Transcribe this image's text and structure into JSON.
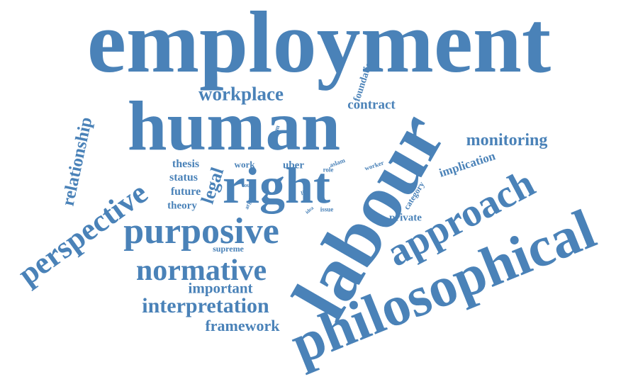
{
  "colors": {
    "word": "#4a82b8",
    "background": "#ffffff"
  },
  "words": [
    {
      "id": "employment",
      "text": "employment"
    },
    {
      "id": "human",
      "text": "human"
    },
    {
      "id": "labour",
      "text": "labour"
    },
    {
      "id": "philosophical",
      "text": "philosophical"
    },
    {
      "id": "right",
      "text": "right"
    },
    {
      "id": "approach",
      "text": "approach"
    },
    {
      "id": "purposive",
      "text": "purposive"
    },
    {
      "id": "perspective",
      "text": "perspective"
    },
    {
      "id": "normative",
      "text": "normative"
    },
    {
      "id": "interpretation",
      "text": "interpretation"
    },
    {
      "id": "workplace",
      "text": "workplace"
    },
    {
      "id": "relationship",
      "text": "relationship"
    },
    {
      "id": "monitoring",
      "text": "monitoring"
    },
    {
      "id": "framework",
      "text": "framework"
    },
    {
      "id": "important",
      "text": "important"
    },
    {
      "id": "legal",
      "text": "legal"
    },
    {
      "id": "contract",
      "text": "contract"
    },
    {
      "id": "foundation",
      "text": "foundation"
    },
    {
      "id": "implication",
      "text": "implication"
    },
    {
      "id": "private",
      "text": "private"
    },
    {
      "id": "thesis",
      "text": "thesis"
    },
    {
      "id": "status",
      "text": "status"
    },
    {
      "id": "future",
      "text": "future"
    },
    {
      "id": "theory",
      "text": "theory"
    },
    {
      "id": "work",
      "text": "work"
    },
    {
      "id": "uber",
      "text": "uber"
    },
    {
      "id": "supreme",
      "text": "supreme"
    },
    {
      "id": "category",
      "text": "category"
    },
    {
      "id": "reform",
      "text": "reform"
    },
    {
      "id": "worker",
      "text": "worker"
    },
    {
      "id": "aslam",
      "text": "aslam"
    },
    {
      "id": "role",
      "text": "role"
    },
    {
      "id": "court",
      "text": "court"
    },
    {
      "id": "argue",
      "text": "argue"
    },
    {
      "id": "life",
      "text": "life"
    },
    {
      "id": "idea",
      "text": "idea"
    },
    {
      "id": "issue",
      "text": "issue"
    }
  ]
}
